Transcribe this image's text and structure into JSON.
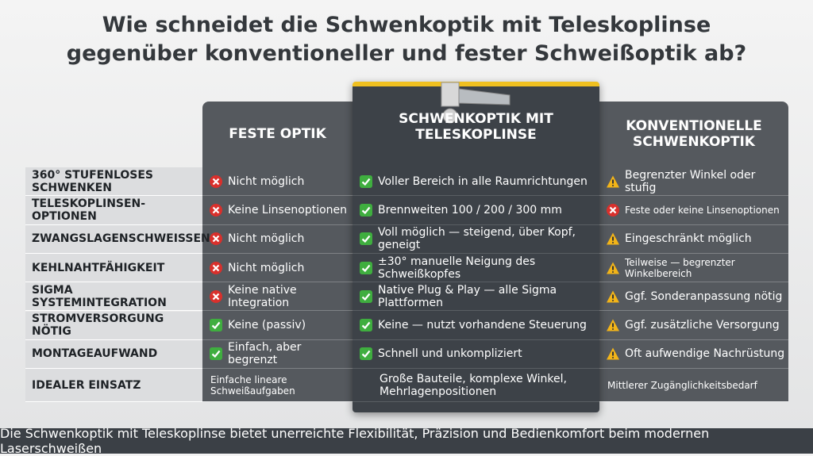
{
  "title": [
    "Wie schneidet die Schwenkoptik mit Teleskoplinse",
    "gegenüber konventioneller und fester Schweißoptik ab?"
  ],
  "table": {
    "columns": [
      "FESTE OPTIK",
      "SCHWENKOPTIK MIT TELESKOPLINSE",
      "KONVENTIONELLE SCHWENKOPTIK"
    ],
    "rows": [
      [
        "360° STUFENLOSES SCHWENKEN",
        "Nicht möglich",
        "Voller Bereich in alle Raumrichtungen",
        "Begrenzter Winkel oder stufig"
      ],
      [
        "TELESKOPLINSEN-OPTIONEN",
        "Keine Linsenoptionen",
        "Brennweiten 100 / 200 / 300 mm",
        "Feste oder keine Linsenoptionen"
      ],
      [
        "ZWANGSLAGENSCHWEISSEN",
        "Nicht möglich",
        "Voll möglich — steigend, über Kopf, geneigt",
        "Eingeschränkt möglich"
      ],
      [
        "KEHLNAHTFÄHIGKEIT",
        "Nicht möglich",
        "±30° manuelle Neigung des Schweißkopfes",
        "Teilweise — begrenzter Winkelbereich"
      ],
      [
        "SIGMA SYSTEMINTEGRATION",
        "Keine native Integration",
        "Native Plug & Play — alle Sigma Plattformen",
        "Ggf. Sonderanpassung nötig"
      ],
      [
        "STROMVERSORGUNG NÖTIG",
        "Keine (passiv)",
        "Keine — nutzt vorhandene Steuerung",
        "Ggf. zusätzliche Versorgung"
      ],
      [
        "MONTAGEAUFWAND",
        "Einfach, aber begrenzt",
        "Schnell und unkompliziert",
        "Oft aufwendige Nachrüstung"
      ],
      [
        "IDEALER EINSATZ",
        "Einfache lineare Schweißaufgaben",
        "Große Bauteile, komplexe Winkel, Mehrlagenpositionen",
        "Mittlerer Zugänglichkeitsbedarf"
      ]
    ]
  },
  "footer": "Die Schwenkoptik mit Teleskoplinse bietet unerreichte Flexibilität, Präzision und Bedienkomfort beim modernen Laserschweißen"
}
